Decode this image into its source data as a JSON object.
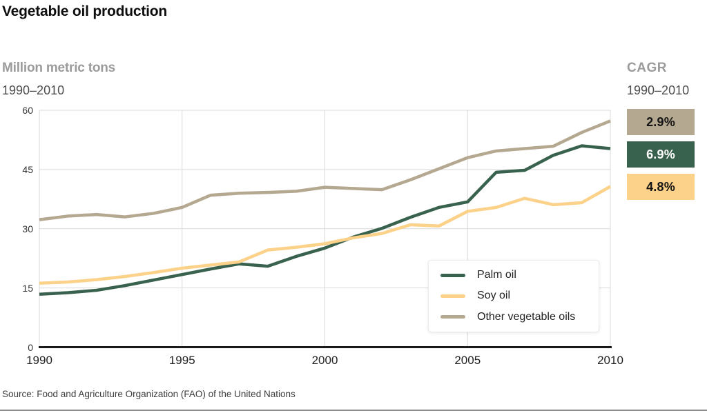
{
  "title": "Vegetable oil production",
  "left_heading": {
    "unit_label": "Million metric tons",
    "period": "1990–2010"
  },
  "cagr_panel": {
    "heading": "CAGR",
    "period": "1990–2010",
    "badges": [
      {
        "label": "2.9%",
        "series": "Other vegetable oils",
        "bg": "#b5a890",
        "text_color": "#141414"
      },
      {
        "label": "6.9%",
        "series": "Palm oil",
        "bg": "#38614e",
        "text_color": "#ffffff"
      },
      {
        "label": "4.8%",
        "series": "Soy oil",
        "bg": "#fcd189",
        "text_color": "#141414"
      }
    ]
  },
  "source_note": "Source: Food and Agriculture Organization (FAO) of the United Nations",
  "colors": {
    "palm": "#38614e",
    "soy": "#fcd189",
    "other": "#b5a890",
    "gridline": "#d9d9d9",
    "axis": "#1a1a1a"
  },
  "chart_data": {
    "type": "line",
    "title": "Vegetable oil production",
    "ylabel": "Million metric tons",
    "xlabel": "",
    "xlim": [
      1990,
      2010
    ],
    "ylim": [
      0,
      60
    ],
    "x_ticks": [
      1990,
      1995,
      2000,
      2005,
      2010
    ],
    "y_ticks": [
      0,
      15,
      30,
      45,
      60
    ],
    "grid": true,
    "legend_position": "inside-bottom-right",
    "x": [
      1990,
      1991,
      1992,
      1993,
      1994,
      1995,
      1996,
      1997,
      1998,
      1999,
      2000,
      2001,
      2002,
      2003,
      2004,
      2005,
      2006,
      2007,
      2008,
      2009,
      2010
    ],
    "series": [
      {
        "name": "Palm oil",
        "color": "#38614e",
        "cagr": "6.9%",
        "values": [
          13.4,
          13.8,
          14.4,
          15.6,
          17.0,
          18.4,
          19.8,
          21.1,
          20.5,
          23.0,
          25.1,
          27.9,
          30.1,
          32.9,
          35.4,
          36.8,
          44.3,
          44.8,
          48.6,
          51.0,
          50.3
        ]
      },
      {
        "name": "Soy oil",
        "color": "#fcd189",
        "cagr": "4.8%",
        "values": [
          16.2,
          16.5,
          17.1,
          17.9,
          18.9,
          20.0,
          20.8,
          21.6,
          24.6,
          25.3,
          26.2,
          27.7,
          28.8,
          31.0,
          30.7,
          34.4,
          35.4,
          37.7,
          36.1,
          36.6,
          40.7
        ]
      },
      {
        "name": "Other vegetable oils",
        "color": "#b5a890",
        "cagr": "2.9%",
        "values": [
          32.3,
          33.2,
          33.6,
          33.0,
          33.9,
          35.4,
          38.5,
          39.0,
          39.2,
          39.5,
          40.5,
          40.2,
          39.9,
          42.4,
          45.2,
          48.0,
          49.7,
          50.3,
          50.9,
          54.4,
          57.3
        ]
      }
    ]
  }
}
